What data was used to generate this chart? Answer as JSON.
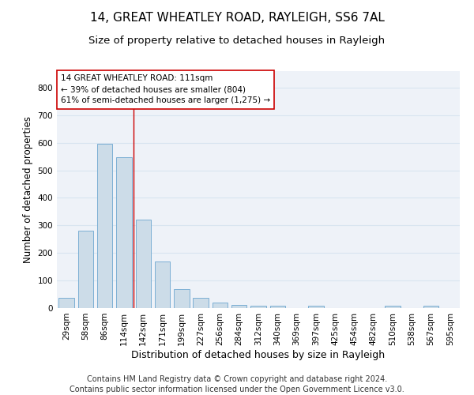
{
  "title_line1": "14, GREAT WHEATLEY ROAD, RAYLEIGH, SS6 7AL",
  "title_line2": "Size of property relative to detached houses in Rayleigh",
  "xlabel": "Distribution of detached houses by size in Rayleigh",
  "ylabel": "Number of detached properties",
  "footer_line1": "Contains HM Land Registry data © Crown copyright and database right 2024.",
  "footer_line2": "Contains public sector information licensed under the Open Government Licence v3.0.",
  "bar_labels": [
    "29sqm",
    "58sqm",
    "86sqm",
    "114sqm",
    "142sqm",
    "171sqm",
    "199sqm",
    "227sqm",
    "256sqm",
    "284sqm",
    "312sqm",
    "340sqm",
    "369sqm",
    "397sqm",
    "425sqm",
    "454sqm",
    "482sqm",
    "510sqm",
    "538sqm",
    "567sqm",
    "595sqm"
  ],
  "bar_values": [
    38,
    280,
    595,
    548,
    322,
    170,
    70,
    38,
    20,
    11,
    8,
    8,
    0,
    8,
    0,
    0,
    0,
    8,
    0,
    8,
    0
  ],
  "bar_color": "#ccdce8",
  "bar_edge_color": "#7bafd4",
  "grid_color": "#d8e4f0",
  "vline_x": 3.5,
  "vline_color": "#cc0000",
  "annotation_text_line1": "14 GREAT WHEATLEY ROAD: 111sqm",
  "annotation_text_line2": "← 39% of detached houses are smaller (804)",
  "annotation_text_line3": "61% of semi-detached houses are larger (1,275) →",
  "annotation_box_color": "white",
  "annotation_border_color": "#cc0000",
  "ylim": [
    0,
    860
  ],
  "yticks": [
    0,
    100,
    200,
    300,
    400,
    500,
    600,
    700,
    800
  ],
  "title1_fontsize": 11,
  "title2_fontsize": 9.5,
  "xlabel_fontsize": 9,
  "ylabel_fontsize": 8.5,
  "tick_fontsize": 7.5,
  "annotation_fontsize": 7.5,
  "footer_fontsize": 7
}
